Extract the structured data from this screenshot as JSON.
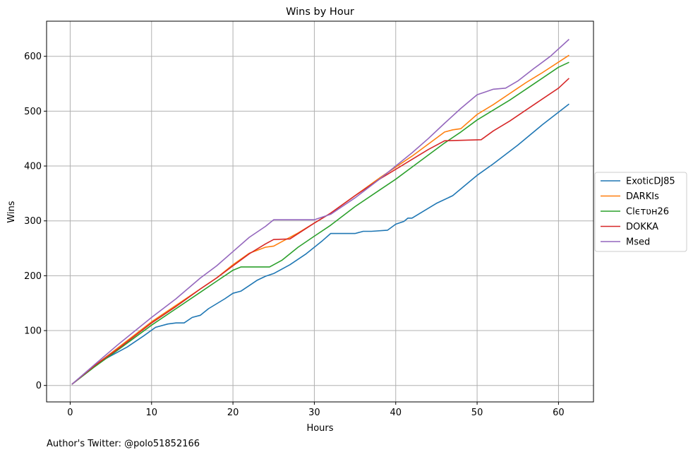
{
  "chart_data": {
    "type": "line",
    "title": "Wins by Hour",
    "xlabel": "Hours",
    "ylabel": "Wins",
    "xlim": [
      -2.9,
      64.3
    ],
    "ylim": [
      -30,
      664
    ],
    "xticks": [
      0,
      10,
      20,
      30,
      40,
      50,
      60
    ],
    "yticks": [
      0,
      100,
      200,
      300,
      400,
      500,
      600
    ],
    "grid": true,
    "legend_position": "center-right-outside",
    "series": [
      {
        "name": "ExoticDJ85",
        "color": "#1f77b4",
        "points": [
          [
            0.2,
            2
          ],
          [
            4,
            46
          ],
          [
            7,
            70
          ],
          [
            9,
            90
          ],
          [
            10.5,
            106
          ],
          [
            12,
            112
          ],
          [
            13,
            114
          ],
          [
            14,
            114
          ],
          [
            15,
            124
          ],
          [
            16,
            128
          ],
          [
            17,
            140
          ],
          [
            19,
            158
          ],
          [
            20,
            168
          ],
          [
            21,
            172
          ],
          [
            22,
            182
          ],
          [
            23,
            192
          ],
          [
            24,
            199
          ],
          [
            25,
            204
          ],
          [
            27,
            220
          ],
          [
            29,
            240
          ],
          [
            31,
            264
          ],
          [
            32,
            277
          ],
          [
            35,
            277
          ],
          [
            36,
            281
          ],
          [
            37,
            281
          ],
          [
            39,
            283
          ],
          [
            40,
            294
          ],
          [
            41,
            299
          ],
          [
            41.5,
            305
          ],
          [
            42,
            305
          ],
          [
            45,
            332
          ],
          [
            47,
            346
          ],
          [
            50,
            383
          ],
          [
            52,
            404
          ],
          [
            55,
            438
          ],
          [
            58,
            475
          ],
          [
            61.3,
            513
          ]
        ]
      },
      {
        "name": "DARKIs",
        "color": "#ff7f0e",
        "points": [
          [
            0.2,
            2
          ],
          [
            3,
            36
          ],
          [
            6,
            70
          ],
          [
            10,
            116
          ],
          [
            13,
            146
          ],
          [
            16,
            176
          ],
          [
            18,
            196
          ],
          [
            20,
            220
          ],
          [
            22,
            241
          ],
          [
            24,
            252
          ],
          [
            25,
            254
          ],
          [
            26,
            262
          ],
          [
            28,
            278
          ],
          [
            30,
            296
          ],
          [
            32,
            314
          ],
          [
            35,
            346
          ],
          [
            38,
            378
          ],
          [
            40,
            398
          ],
          [
            42,
            418
          ],
          [
            44,
            440
          ],
          [
            46,
            462
          ],
          [
            47,
            466
          ],
          [
            48,
            468
          ],
          [
            50,
            494
          ],
          [
            52,
            512
          ],
          [
            54,
            532
          ],
          [
            56,
            552
          ],
          [
            58,
            570
          ],
          [
            61.3,
            602
          ]
        ]
      },
      {
        "name": "Clϵтʋн26",
        "color": "#2ca02c",
        "points": [
          [
            0.2,
            2
          ],
          [
            3,
            34
          ],
          [
            6,
            66
          ],
          [
            10,
            110
          ],
          [
            13,
            140
          ],
          [
            16,
            170
          ],
          [
            18,
            190
          ],
          [
            20,
            210
          ],
          [
            21,
            216
          ],
          [
            24.5,
            216
          ],
          [
            26,
            228
          ],
          [
            28,
            252
          ],
          [
            30,
            272
          ],
          [
            32,
            292
          ],
          [
            35,
            326
          ],
          [
            38,
            356
          ],
          [
            40,
            376
          ],
          [
            42,
            398
          ],
          [
            44,
            420
          ],
          [
            46,
            442
          ],
          [
            48,
            462
          ],
          [
            50,
            484
          ],
          [
            52,
            502
          ],
          [
            54,
            520
          ],
          [
            56,
            540
          ],
          [
            58,
            560
          ],
          [
            60,
            580
          ],
          [
            61.3,
            589
          ]
        ]
      },
      {
        "name": "DOKKA",
        "color": "#d62728",
        "points": [
          [
            0.2,
            2
          ],
          [
            3,
            36
          ],
          [
            6,
            68
          ],
          [
            10,
            114
          ],
          [
            13,
            144
          ],
          [
            16,
            176
          ],
          [
            18,
            196
          ],
          [
            20,
            218
          ],
          [
            22,
            240
          ],
          [
            24,
            258
          ],
          [
            25,
            266
          ],
          [
            27,
            267
          ],
          [
            30,
            296
          ],
          [
            32,
            314
          ],
          [
            35,
            346
          ],
          [
            38,
            376
          ],
          [
            40,
            394
          ],
          [
            42,
            412
          ],
          [
            44,
            430
          ],
          [
            46,
            446
          ],
          [
            50.5,
            448
          ],
          [
            52,
            464
          ],
          [
            54,
            482
          ],
          [
            56,
            502
          ],
          [
            58,
            522
          ],
          [
            60,
            542
          ],
          [
            61.3,
            560
          ]
        ]
      },
      {
        "name": "Msed",
        "color": "#9467bd",
        "points": [
          [
            0.2,
            2
          ],
          [
            3,
            38
          ],
          [
            6,
            76
          ],
          [
            10,
            124
          ],
          [
            13,
            158
          ],
          [
            16,
            196
          ],
          [
            18,
            218
          ],
          [
            20,
            244
          ],
          [
            22,
            270
          ],
          [
            24,
            290
          ],
          [
            25,
            302
          ],
          [
            30,
            302
          ],
          [
            32,
            312
          ],
          [
            35,
            342
          ],
          [
            38,
            376
          ],
          [
            40,
            400
          ],
          [
            42,
            424
          ],
          [
            44,
            450
          ],
          [
            46,
            478
          ],
          [
            48,
            505
          ],
          [
            50,
            530
          ],
          [
            51,
            535
          ],
          [
            52,
            540
          ],
          [
            53.5,
            542
          ],
          [
            55,
            555
          ],
          [
            57,
            578
          ],
          [
            59,
            600
          ],
          [
            61.3,
            631
          ]
        ]
      }
    ]
  },
  "footer": {
    "text": "Author's Twitter: @polo51852166"
  }
}
